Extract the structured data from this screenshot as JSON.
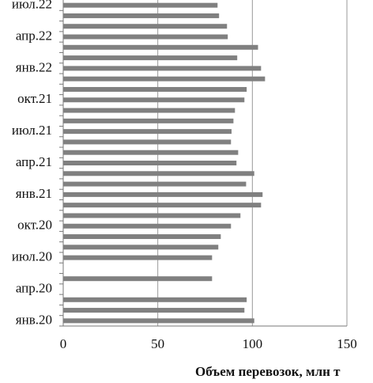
{
  "chart_data": {
    "type": "barh",
    "x_label": "Объем перевозок, млн т",
    "categories": [
      "янв.20",
      null,
      null,
      "апр.20",
      null,
      null,
      "июл.20",
      null,
      null,
      "окт.20",
      null,
      null,
      "янв.21",
      null,
      null,
      "апр.21",
      null,
      null,
      "июл.21",
      null,
      null,
      "окт.21",
      null,
      null,
      "янв.22",
      null,
      null,
      "апр.22",
      null,
      null,
      "июл.22"
    ],
    "values": [
      101,
      95.8,
      97,
      null,
      78.7,
      null,
      78.7,
      82,
      83.3,
      88.7,
      93.7,
      104.6,
      105.4,
      96.7,
      101,
      91.6,
      92.5,
      88.7,
      89,
      90,
      90.8,
      95.8,
      97,
      106.7,
      104.6,
      92,
      103,
      87,
      86.6,
      82.4,
      81.6
    ],
    "color": "#808080",
    "xlim": [
      0,
      150
    ],
    "xticks": [
      0,
      50,
      100,
      150
    ],
    "grid": true
  }
}
